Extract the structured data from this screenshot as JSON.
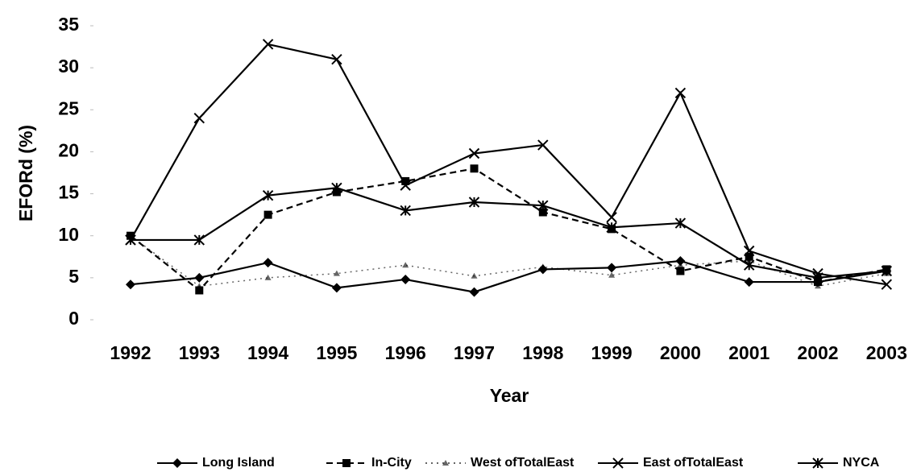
{
  "chart_data": {
    "type": "line",
    "x_label": "Year",
    "y_label": "EFORd (%)",
    "categories": [
      "1992",
      "1993",
      "1994",
      "1995",
      "1996",
      "1997",
      "1998",
      "1999",
      "2000",
      "2001",
      "2002",
      "2003"
    ],
    "ylim": [
      0,
      35
    ],
    "yticks": [
      0,
      5,
      10,
      15,
      20,
      25,
      30,
      35
    ],
    "series": [
      {
        "name": "Long Island",
        "color": "#000000",
        "marker": "diamond",
        "dash": "solid",
        "values": [
          4.2,
          5.0,
          6.8,
          3.8,
          4.8,
          3.3,
          6.0,
          6.2,
          7.0,
          4.5,
          4.5,
          5.8
        ]
      },
      {
        "name": "In-City",
        "color": "#000000",
        "marker": "square",
        "dash": "dashed",
        "values": [
          10.0,
          3.5,
          12.5,
          15.2,
          16.5,
          18.0,
          12.8,
          10.8,
          5.8,
          7.5,
          4.5,
          6.0
        ]
      },
      {
        "name": "West ofTotalEast",
        "color": "#000000",
        "marker": "triangle",
        "dash": "dotted",
        "values": [
          10.0,
          4.0,
          5.0,
          5.5,
          6.5,
          5.2,
          6.3,
          5.3,
          6.5,
          7.0,
          4.0,
          5.5
        ]
      },
      {
        "name": "East ofTotalEast",
        "color": "#000000",
        "marker": "x",
        "dash": "solid",
        "values": [
          9.5,
          24.0,
          32.8,
          31.0,
          16.0,
          19.8,
          20.8,
          12.2,
          27.0,
          8.2,
          5.5,
          4.2
        ]
      },
      {
        "name": "NYCA",
        "color": "#000000",
        "marker": "star",
        "dash": "solid",
        "values": [
          9.5,
          9.5,
          14.8,
          15.7,
          13.0,
          14.0,
          13.6,
          11.0,
          11.5,
          6.5,
          5.0,
          5.8
        ]
      }
    ]
  }
}
